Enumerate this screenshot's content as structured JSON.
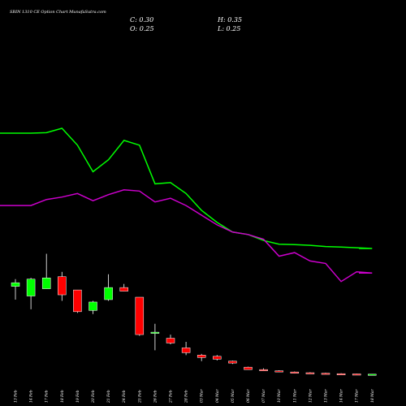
{
  "chart_data": {
    "type": "candlestick",
    "title": "SBIN 1310 CE Option Chart MunafaSutra.com",
    "ohlc_readout": {
      "close": "C: 0.30",
      "open": "O: 0.25",
      "high": "H: 0.35",
      "low": "L: 0.25"
    },
    "categories": [
      "13 Feb",
      "14 Feb",
      "17 Feb",
      "18 Feb",
      "19 Feb",
      "20 Feb",
      "21 Feb",
      "24 Feb",
      "25 Feb",
      "26 Feb",
      "27 Feb",
      "28 Feb",
      "03 Mar",
      "04 Mar",
      "05 Mar",
      "06 Mar",
      "07 Mar",
      "10 Mar",
      "11 Mar",
      "12 Mar",
      "13 Mar",
      "14 Mar",
      "17 Mar",
      "18 Mar"
    ],
    "candles": [
      {
        "o": 31.5,
        "h": 34.5,
        "l": 26.0,
        "c": 33.0
      },
      {
        "o": 27.5,
        "h": 35.0,
        "l": 22.0,
        "c": 34.5
      },
      {
        "o": 30.5,
        "h": 45.0,
        "l": 30.5,
        "c": 35.0
      },
      {
        "o": 35.5,
        "h": 37.5,
        "l": 25.5,
        "c": 28.0
      },
      {
        "o": 30.0,
        "h": 30.0,
        "l": 20.5,
        "c": 21.0
      },
      {
        "o": 21.5,
        "h": 25.5,
        "l": 20.0,
        "c": 25.0
      },
      {
        "o": 26.0,
        "h": 36.5,
        "l": 25.5,
        "c": 31.0
      },
      {
        "o": 31.0,
        "h": 32.5,
        "l": 29.5,
        "c": 29.5
      },
      {
        "o": 27.0,
        "h": 27.0,
        "l": 11.0,
        "c": 11.5
      },
      {
        "o": 12.0,
        "h": 16.0,
        "l": 5.0,
        "c": 12.5
      },
      {
        "o": 10.0,
        "h": 11.5,
        "l": 7.5,
        "c": 8.0
      },
      {
        "o": 6.0,
        "h": 8.5,
        "l": 3.0,
        "c": 4.0
      },
      {
        "o": 3.0,
        "h": 3.5,
        "l": 0.5,
        "c": 2.0
      },
      {
        "o": 2.5,
        "h": 3.0,
        "l": 0.8,
        "c": 1.3
      },
      {
        "o": 0.5,
        "h": 0.7,
        "l": -0.7,
        "c": -0.3
      },
      {
        "o": -2.0,
        "h": -1.8,
        "l": -3.0,
        "c": -3.0
      },
      {
        "o": -3.0,
        "h": -2.5,
        "l": -3.3,
        "c": -3.3
      },
      {
        "o": -3.5,
        "h": -3.3,
        "l": -4.0,
        "c": -3.8
      },
      {
        "o": -4.0,
        "h": -3.8,
        "l": -4.5,
        "c": -4.3
      },
      {
        "o": -4.3,
        "h": -4.1,
        "l": -4.6,
        "c": -4.5
      },
      {
        "o": -4.5,
        "h": -4.3,
        "l": -4.7,
        "c": -4.6
      },
      {
        "o": -4.7,
        "h": -4.5,
        "l": -4.8,
        "c": -4.8
      },
      {
        "o": -4.8,
        "h": -4.7,
        "l": -5.0,
        "c": -5.0
      },
      {
        "o": -5.2,
        "h": -4.9,
        "l": -5.2,
        "c": -4.9
      }
    ],
    "series": [
      {
        "color": "#00ff00",
        "values": [
          null,
          95,
          95.2,
          97,
          90,
          79,
          84,
          92,
          90,
          74,
          74.5,
          70,
          63,
          58,
          54,
          53,
          50.5,
          49,
          48.8,
          48.5,
          48,
          47.8,
          47.5,
          47.2
        ]
      },
      {
        "color": "#cc00cc",
        "values": [
          null,
          65,
          67.5,
          68.5,
          70,
          67,
          69.5,
          71.5,
          71,
          66.5,
          68,
          65,
          61,
          57,
          54,
          53,
          51,
          44,
          45.5,
          42,
          41,
          33.5,
          37.5,
          37
        ]
      }
    ],
    "colors": {
      "up": "#00ff00",
      "down": "#ff0000",
      "background": "#000000",
      "text": "#ffffff"
    },
    "ylim": [
      -8,
      130
    ],
    "grid": false
  }
}
